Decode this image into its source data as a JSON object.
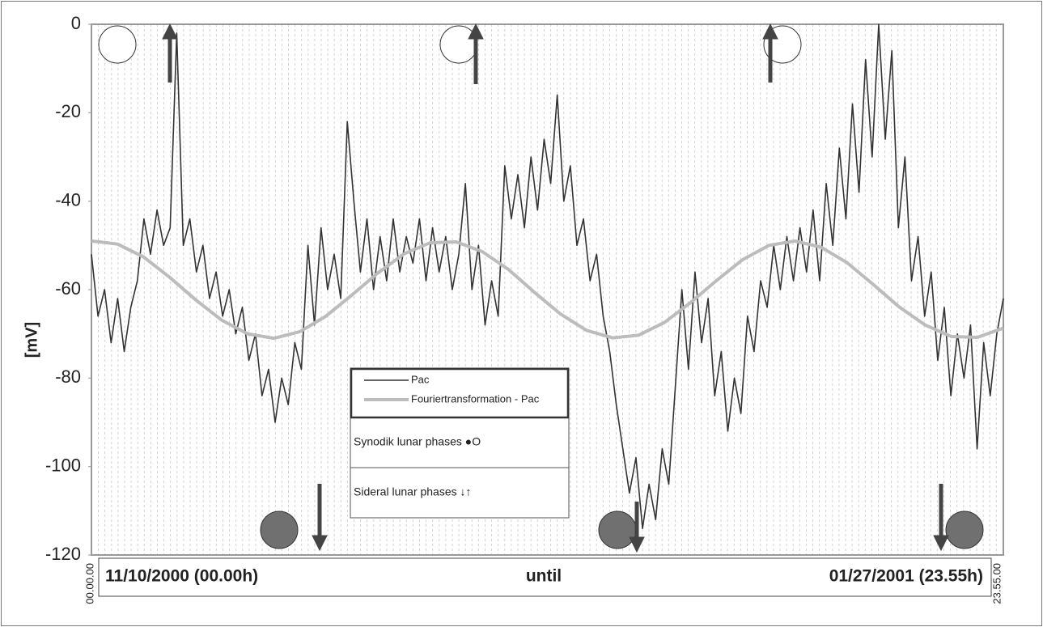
{
  "chart_data": {
    "type": "line",
    "y_label": "[mV]",
    "ylim": [
      -120,
      0
    ],
    "yticks": [
      0,
      -20,
      -40,
      -60,
      -80,
      -100,
      -120
    ],
    "grid": true,
    "x_tick_labels": [
      "00.00.00",
      "23.55.00"
    ],
    "period": {
      "start": "11/10/2000 (00.00h)",
      "middle": "until",
      "end": "01/27/2001 (23.55h)"
    },
    "series": [
      {
        "name": "Pac",
        "color": "#333333",
        "values": [
          -52,
          -66,
          -60,
          -72,
          -62,
          -74,
          -64,
          -58,
          -44,
          -52,
          -42,
          -50,
          -46,
          -2,
          -50,
          -44,
          -56,
          -50,
          -62,
          -56,
          -66,
          -60,
          -70,
          -64,
          -76,
          -70,
          -84,
          -78,
          -90,
          -80,
          -86,
          -72,
          -78,
          -50,
          -68,
          -46,
          -60,
          -52,
          -62,
          -22,
          -40,
          -56,
          -44,
          -60,
          -48,
          -58,
          -44,
          -56,
          -48,
          -54,
          -44,
          -58,
          -46,
          -56,
          -48,
          -60,
          -52,
          -36,
          -60,
          -50,
          -68,
          -58,
          -66,
          -32,
          -44,
          -34,
          -46,
          -30,
          -42,
          -26,
          -36,
          -16,
          -40,
          -32,
          -50,
          -44,
          -58,
          -52,
          -66,
          -74,
          -86,
          -96,
          -106,
          -98,
          -114,
          -104,
          -112,
          -96,
          -104,
          -82,
          -60,
          -78,
          -56,
          -72,
          -62,
          -84,
          -74,
          -92,
          -80,
          -88,
          -66,
          -74,
          -58,
          -64,
          -50,
          -60,
          -48,
          -58,
          -46,
          -56,
          -42,
          -58,
          -36,
          -50,
          -28,
          -44,
          -18,
          -38,
          -8,
          -30,
          0,
          -26,
          -6,
          -46,
          -30,
          -58,
          -48,
          -66,
          -56,
          -76,
          -64,
          -84,
          -70,
          -80,
          -68,
          -96,
          -72,
          -84,
          -70,
          -62
        ]
      },
      {
        "name": "Fouriertransformation - Pac",
        "color": "#bcbcbc",
        "values": [
          -49,
          -49.7,
          -52.6,
          -57.2,
          -62.3,
          -66.9,
          -70,
          -71,
          -69.5,
          -66,
          -61.2,
          -56.2,
          -51.9,
          -49.4,
          -49.2,
          -51.4,
          -55.4,
          -60.6,
          -65.5,
          -69.2,
          -70.9,
          -70.3,
          -67.4,
          -62.9,
          -57.9,
          -53.2,
          -50,
          -49,
          -50.4,
          -53.9,
          -58.8,
          -63.9,
          -68,
          -70.6,
          -70.8,
          -68.7
        ]
      }
    ],
    "legend_notes": [
      "Synodik lunar phases ●O",
      "Sideral lunar phases ↓↑"
    ]
  }
}
